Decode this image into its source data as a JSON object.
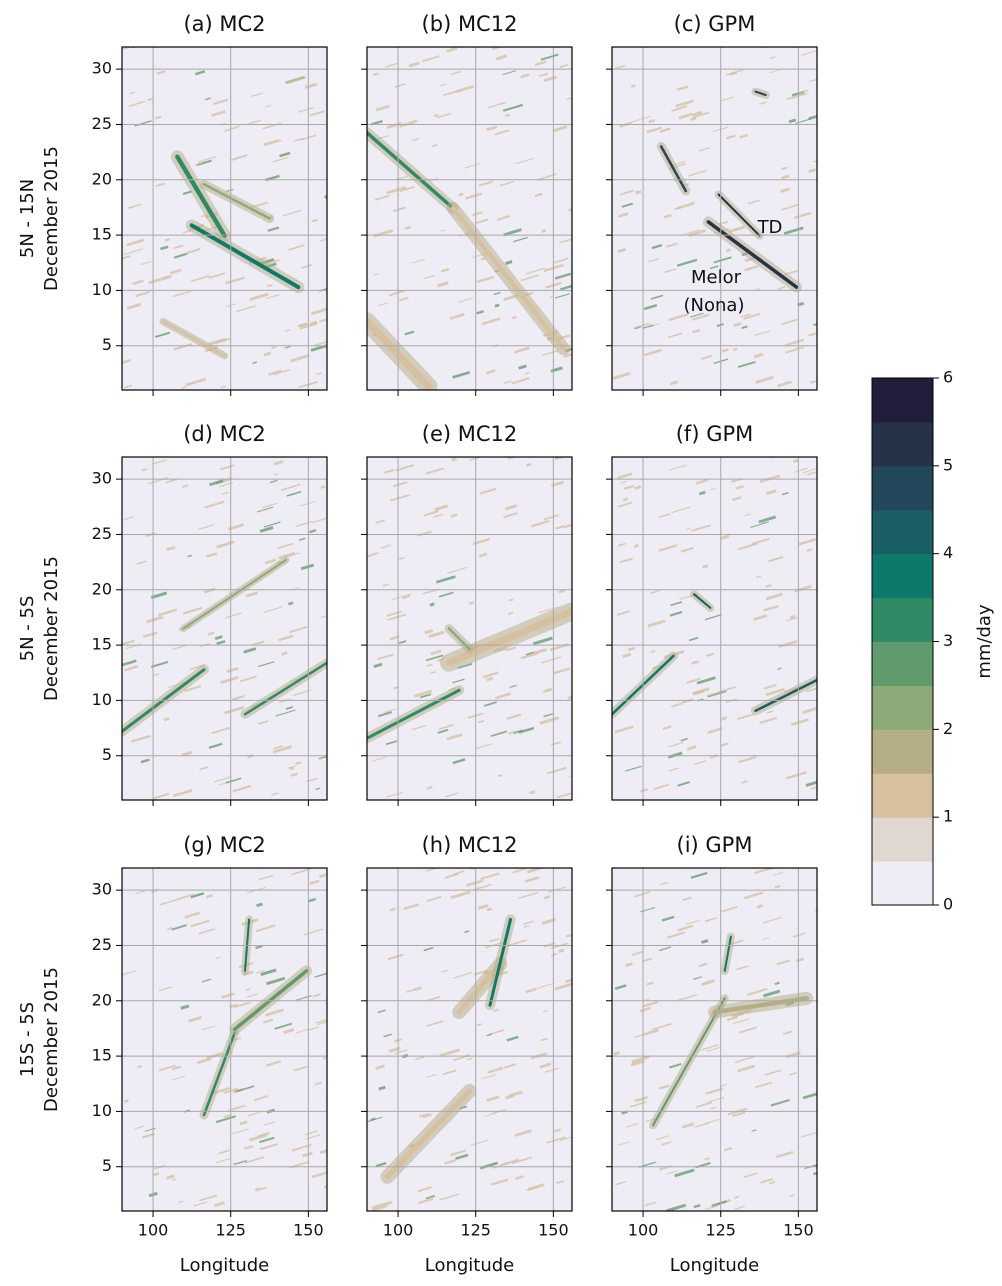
{
  "chart_data": [
    {
      "type": "heatmap",
      "title": "(a) MC2",
      "ylabel": [
        "5N - 15N",
        "December 2015"
      ],
      "xlim": [
        90,
        156
      ],
      "ylim": [
        1,
        32
      ],
      "xticks": [
        100,
        125,
        150
      ],
      "yticks": [
        5,
        10,
        15,
        20,
        25,
        30
      ],
      "grid": true,
      "show_xticklabels": false,
      "show_yticklabels": true
    },
    {
      "type": "heatmap",
      "title": "(b) MC12",
      "xlim": [
        90,
        156
      ],
      "ylim": [
        1,
        32
      ],
      "xticks": [
        100,
        125,
        150
      ],
      "yticks": [
        5,
        10,
        15,
        20,
        25,
        30
      ],
      "grid": true,
      "show_xticklabels": false,
      "show_yticklabels": false
    },
    {
      "type": "heatmap",
      "title": "(c) GPM",
      "xlim": [
        90,
        156
      ],
      "ylim": [
        1,
        32
      ],
      "xticks": [
        100,
        125,
        150
      ],
      "yticks": [
        5,
        10,
        15,
        20,
        25,
        30
      ],
      "grid": true,
      "show_xticklabels": false,
      "show_yticklabels": false,
      "annotations": [
        "TD",
        "Melor",
        "(Nona)"
      ]
    },
    {
      "type": "heatmap",
      "title": "(d) MC2",
      "ylabel": [
        "5N - 5S",
        "December 2015"
      ],
      "xlim": [
        90,
        156
      ],
      "ylim": [
        1,
        32
      ],
      "xticks": [
        100,
        125,
        150
      ],
      "yticks": [
        5,
        10,
        15,
        20,
        25,
        30
      ],
      "grid": true,
      "show_xticklabels": false,
      "show_yticklabels": true
    },
    {
      "type": "heatmap",
      "title": "(e) MC12",
      "xlim": [
        90,
        156
      ],
      "ylim": [
        1,
        32
      ],
      "xticks": [
        100,
        125,
        150
      ],
      "yticks": [
        5,
        10,
        15,
        20,
        25,
        30
      ],
      "grid": true,
      "show_xticklabels": false,
      "show_yticklabels": false
    },
    {
      "type": "heatmap",
      "title": "(f) GPM",
      "xlim": [
        90,
        156
      ],
      "ylim": [
        1,
        32
      ],
      "xticks": [
        100,
        125,
        150
      ],
      "yticks": [
        5,
        10,
        15,
        20,
        25,
        30
      ],
      "grid": true,
      "show_xticklabels": false,
      "show_yticklabels": false
    },
    {
      "type": "heatmap",
      "title": "(g) MC2",
      "ylabel": [
        "15S - 5S",
        "December 2015"
      ],
      "xlabel": "Longitude",
      "xlim": [
        90,
        156
      ],
      "ylim": [
        1,
        32
      ],
      "xticks": [
        100,
        125,
        150
      ],
      "yticks": [
        5,
        10,
        15,
        20,
        25,
        30
      ],
      "grid": true,
      "show_xticklabels": true,
      "show_yticklabels": true
    },
    {
      "type": "heatmap",
      "title": "(h) MC12",
      "xlabel": "Longitude",
      "xlim": [
        90,
        156
      ],
      "ylim": [
        1,
        32
      ],
      "xticks": [
        100,
        125,
        150
      ],
      "yticks": [
        5,
        10,
        15,
        20,
        25,
        30
      ],
      "grid": true,
      "show_xticklabels": true,
      "show_yticklabels": false
    },
    {
      "type": "heatmap",
      "title": "(i) GPM",
      "xlabel": "Longitude",
      "xlim": [
        90,
        156
      ],
      "ylim": [
        1,
        32
      ],
      "xticks": [
        100,
        125,
        150
      ],
      "yticks": [
        5,
        10,
        15,
        20,
        25,
        30
      ],
      "grid": true,
      "show_xticklabels": true,
      "show_yticklabels": false
    }
  ],
  "colorbar": {
    "label": "mm/day",
    "lim": [
      0,
      6
    ],
    "ticks": [
      0,
      1,
      2,
      3,
      4,
      5,
      6
    ],
    "colors": [
      "#eeecf4",
      "#e0d8d0",
      "#d6c09e",
      "#b5ae84",
      "#8dab78",
      "#5f9b6c",
      "#2f8b66",
      "#0c7a6a",
      "#1a5f66",
      "#22475a",
      "#263248",
      "#221d3b"
    ]
  }
}
